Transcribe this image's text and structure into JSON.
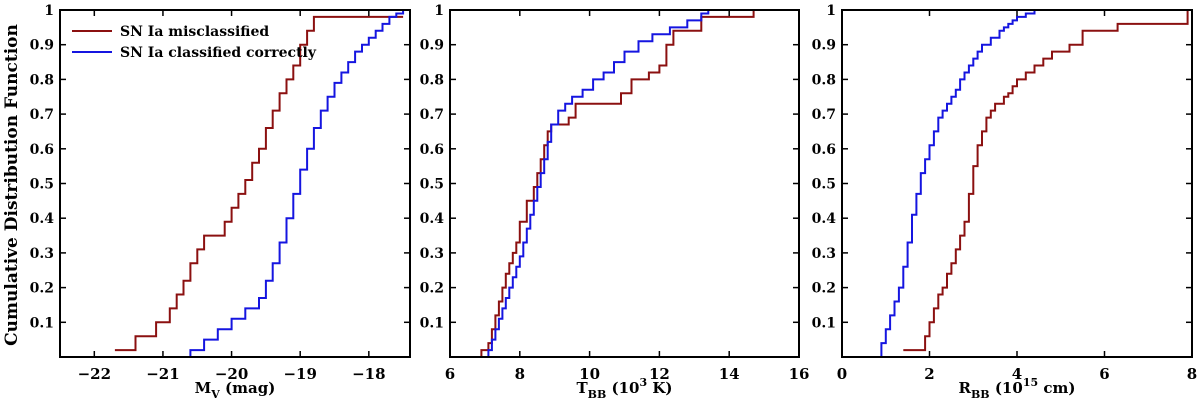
{
  "figure": {
    "ylabel": "Cumulative Distribution Function"
  },
  "legend": {
    "position": "top-left of first panel",
    "entries": [
      {
        "label": "SN Ia misclassified",
        "color": "#8B1010"
      },
      {
        "label": "SN Ia classified correctly",
        "color": "#1515E0"
      }
    ]
  },
  "colors": {
    "misclassified": "#8B1010",
    "correct": "#1515E0",
    "axes": "#000000"
  },
  "chart_data": [
    {
      "type": "line",
      "step": true,
      "xlabel_main": "M",
      "xlabel_sub": "V",
      "xlabel_rest": " (mag)",
      "xlim": [
        -22.5,
        -17.4
      ],
      "ylim": [
        0,
        1
      ],
      "x_ticks": [
        -22,
        -21,
        -20,
        -19,
        -18
      ],
      "y_ticks": [
        0.1,
        0.2,
        0.3,
        0.4,
        0.5,
        0.6,
        0.7,
        0.8,
        0.9,
        1
      ],
      "series": [
        {
          "name": "SN Ia misclassified",
          "x": [
            -21.7,
            -21.4,
            -21.1,
            -20.9,
            -20.8,
            -20.7,
            -20.6,
            -20.5,
            -20.4,
            -20.3,
            -20.2,
            -20.1,
            -20.0,
            -19.9,
            -19.8,
            -19.7,
            -19.6,
            -19.5,
            -19.4,
            -19.3,
            -19.2,
            -19.1,
            -19.0,
            -18.9,
            -18.8,
            -18.4,
            -17.5
          ],
          "y": [
            0.02,
            0.06,
            0.1,
            0.14,
            0.18,
            0.22,
            0.27,
            0.31,
            0.35,
            0.35,
            0.35,
            0.39,
            0.43,
            0.47,
            0.51,
            0.56,
            0.6,
            0.66,
            0.71,
            0.76,
            0.8,
            0.84,
            0.9,
            0.94,
            0.98,
            0.98,
            0.98
          ]
        },
        {
          "name": "SN Ia classified correctly",
          "x": [
            -21.1,
            -20.6,
            -20.4,
            -20.2,
            -20.0,
            -19.8,
            -19.6,
            -19.5,
            -19.4,
            -19.3,
            -19.2,
            -19.1,
            -19.0,
            -18.9,
            -18.8,
            -18.7,
            -18.6,
            -18.5,
            -18.4,
            -18.3,
            -18.2,
            -18.1,
            -18.0,
            -17.9,
            -17.8,
            -17.7,
            -17.6,
            -17.5
          ],
          "y": [
            0.0,
            0.02,
            0.05,
            0.08,
            0.11,
            0.14,
            0.17,
            0.22,
            0.27,
            0.33,
            0.4,
            0.47,
            0.54,
            0.6,
            0.66,
            0.71,
            0.75,
            0.79,
            0.82,
            0.85,
            0.88,
            0.9,
            0.92,
            0.94,
            0.96,
            0.98,
            0.99,
            1.0
          ]
        }
      ]
    },
    {
      "type": "line",
      "step": true,
      "xlabel_main": "T",
      "xlabel_sub": "BB",
      "xlabel_rest": " (10",
      "xlabel_sup": "3",
      "xlabel_end": " K)",
      "xlim": [
        6,
        16
      ],
      "ylim": [
        0,
        1
      ],
      "x_ticks": [
        6,
        8,
        10,
        12,
        14,
        16
      ],
      "y_ticks": [
        0.1,
        0.2,
        0.3,
        0.4,
        0.5,
        0.6,
        0.7,
        0.8,
        0.9,
        1
      ],
      "series": [
        {
          "name": "SN Ia misclassified",
          "x": [
            6.6,
            6.9,
            7.1,
            7.2,
            7.3,
            7.4,
            7.5,
            7.6,
            7.7,
            7.8,
            7.9,
            8.0,
            8.2,
            8.4,
            8.5,
            8.6,
            8.7,
            8.8,
            8.9,
            9.0,
            9.4,
            9.6,
            10.0,
            10.9,
            11.2,
            11.7,
            12.0,
            12.2,
            12.4,
            13.2,
            14.7
          ],
          "y": [
            0.0,
            0.02,
            0.04,
            0.08,
            0.12,
            0.16,
            0.2,
            0.24,
            0.27,
            0.3,
            0.33,
            0.39,
            0.45,
            0.49,
            0.53,
            0.57,
            0.61,
            0.65,
            0.67,
            0.67,
            0.69,
            0.73,
            0.73,
            0.76,
            0.8,
            0.82,
            0.84,
            0.9,
            0.94,
            0.98,
            1.0
          ]
        },
        {
          "name": "SN Ia classified correctly",
          "x": [
            6.5,
            7.1,
            7.2,
            7.3,
            7.4,
            7.5,
            7.6,
            7.7,
            7.8,
            7.9,
            8.0,
            8.1,
            8.2,
            8.3,
            8.4,
            8.5,
            8.6,
            8.7,
            8.8,
            8.9,
            9.1,
            9.3,
            9.5,
            9.8,
            10.1,
            10.4,
            10.7,
            11.0,
            11.4,
            11.8,
            12.3,
            12.8,
            13.2,
            13.4
          ],
          "y": [
            0.0,
            0.02,
            0.05,
            0.08,
            0.11,
            0.14,
            0.17,
            0.2,
            0.23,
            0.26,
            0.29,
            0.33,
            0.37,
            0.41,
            0.45,
            0.49,
            0.53,
            0.57,
            0.62,
            0.67,
            0.71,
            0.73,
            0.75,
            0.77,
            0.8,
            0.82,
            0.85,
            0.88,
            0.91,
            0.93,
            0.95,
            0.97,
            0.99,
            1.0
          ]
        }
      ]
    },
    {
      "type": "line",
      "step": true,
      "xlabel_main": "R",
      "xlabel_sub": "BB",
      "xlabel_rest": " (10",
      "xlabel_sup": "15",
      "xlabel_end": " cm)",
      "xlim": [
        0,
        8
      ],
      "ylim": [
        0,
        1
      ],
      "x_ticks": [
        0,
        2,
        4,
        6,
        8
      ],
      "y_ticks": [
        0.1,
        0.2,
        0.3,
        0.4,
        0.5,
        0.6,
        0.7,
        0.8,
        0.9,
        1
      ],
      "series": [
        {
          "name": "SN Ia misclassified",
          "x": [
            1.4,
            1.9,
            2.0,
            2.1,
            2.2,
            2.3,
            2.4,
            2.5,
            2.6,
            2.7,
            2.8,
            2.9,
            3.0,
            3.1,
            3.2,
            3.3,
            3.4,
            3.5,
            3.6,
            3.7,
            3.8,
            3.9,
            4.0,
            4.2,
            4.4,
            4.6,
            4.8,
            5.0,
            5.2,
            5.5,
            6.3,
            7.9
          ],
          "y": [
            0.02,
            0.06,
            0.1,
            0.14,
            0.18,
            0.2,
            0.24,
            0.27,
            0.31,
            0.35,
            0.39,
            0.47,
            0.55,
            0.61,
            0.65,
            0.69,
            0.71,
            0.73,
            0.73,
            0.75,
            0.76,
            0.78,
            0.8,
            0.82,
            0.84,
            0.86,
            0.88,
            0.88,
            0.9,
            0.94,
            0.96,
            1.0
          ]
        },
        {
          "name": "SN Ia classified correctly",
          "x": [
            0.8,
            0.9,
            1.0,
            1.1,
            1.2,
            1.3,
            1.4,
            1.5,
            1.6,
            1.7,
            1.8,
            1.9,
            2.0,
            2.1,
            2.2,
            2.3,
            2.4,
            2.5,
            2.6,
            2.7,
            2.8,
            2.9,
            3.0,
            3.1,
            3.2,
            3.3,
            3.4,
            3.5,
            3.6,
            3.7,
            3.8,
            3.9,
            4.0,
            4.1,
            4.2,
            4.4
          ],
          "y": [
            0.0,
            0.04,
            0.08,
            0.12,
            0.16,
            0.2,
            0.26,
            0.33,
            0.41,
            0.47,
            0.53,
            0.57,
            0.61,
            0.65,
            0.69,
            0.71,
            0.73,
            0.75,
            0.77,
            0.8,
            0.82,
            0.84,
            0.86,
            0.88,
            0.9,
            0.9,
            0.92,
            0.92,
            0.94,
            0.95,
            0.96,
            0.97,
            0.98,
            0.98,
            0.99,
            1.0
          ]
        }
      ]
    }
  ]
}
